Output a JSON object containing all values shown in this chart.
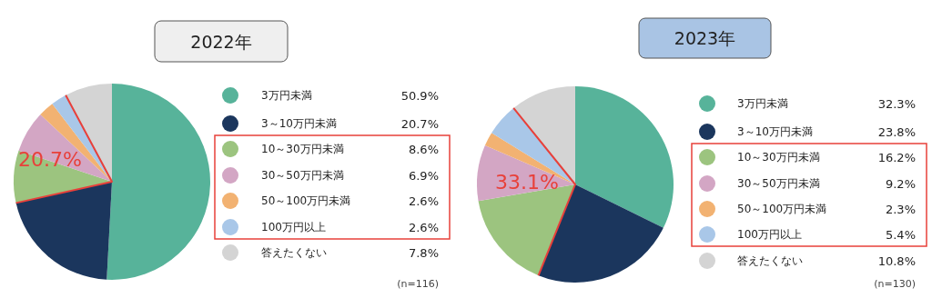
{
  "chart_data": [
    {
      "type": "pie",
      "title": "2022年",
      "legend": "right",
      "categories": [
        "3万円未満",
        "3～10万円未満",
        "10～30万円未満",
        "30～50万円未満",
        "50～100万円未満",
        "100万円以上",
        "答えたくない"
      ],
      "values": [
        50.9,
        20.7,
        8.6,
        6.9,
        2.6,
        2.6,
        7.8
      ],
      "value_labels": [
        "50.9%",
        "20.7%",
        "8.6%",
        "6.9%",
        "2.6%",
        "2.6%",
        "7.8%"
      ],
      "colors": [
        "#57b39a",
        "#1b365d",
        "#9cc47f",
        "#d3a6c4",
        "#f2b272",
        "#a9c7e8",
        "#d4d4d4"
      ],
      "annotations": [
        "20.7%",
        "(n=116)"
      ]
    },
    {
      "type": "pie",
      "title": "2023年",
      "legend": "right",
      "categories": [
        "3万円未満",
        "3～10万円未満",
        "10～30万円未満",
        "30～50万円未満",
        "50～100万円未満",
        "100万円以上",
        "答えたくない"
      ],
      "values": [
        32.3,
        23.8,
        16.2,
        9.2,
        2.3,
        5.4,
        10.8
      ],
      "value_labels": [
        "32.3%",
        "23.8%",
        "16.2%",
        "9.2%",
        "2.3%",
        "5.4%",
        "10.8%"
      ],
      "colors": [
        "#57b39a",
        "#1b365d",
        "#9cc47f",
        "#d3a6c4",
        "#f2b272",
        "#a9c7e8",
        "#d4d4d4"
      ],
      "annotations": [
        "33.1%",
        "(n=130)"
      ]
    }
  ]
}
